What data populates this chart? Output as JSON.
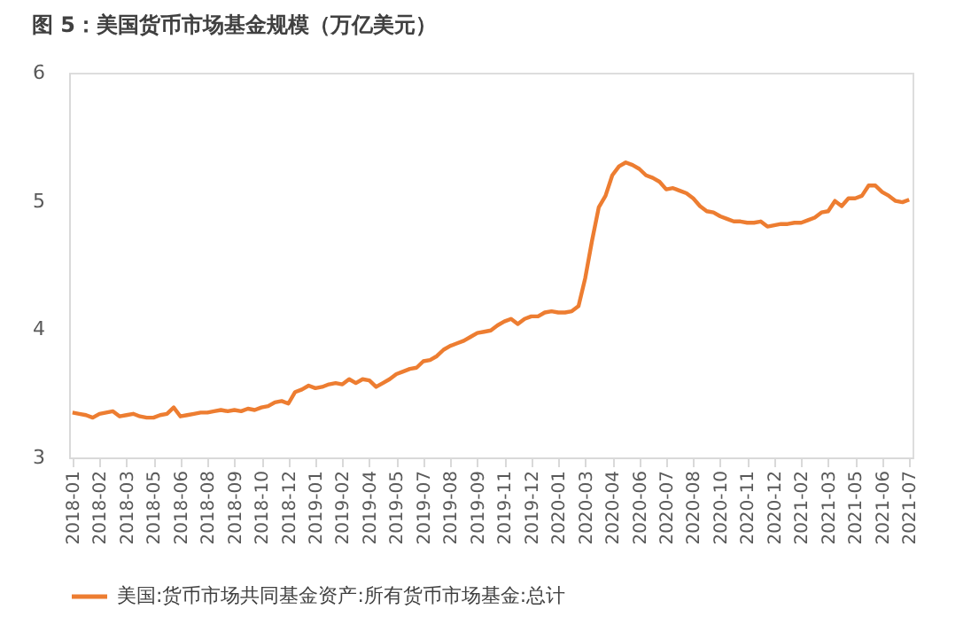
{
  "chart_data": {
    "type": "line",
    "title": "图 5：美国货币市场基金规模（万亿美元）",
    "categories": [
      "2018-01",
      null,
      null,
      null,
      "2018-02",
      null,
      null,
      null,
      "2018-03",
      null,
      null,
      null,
      "2018-05",
      null,
      null,
      null,
      "2018-06",
      null,
      null,
      null,
      "2018-08",
      null,
      null,
      null,
      "2018-09",
      null,
      null,
      null,
      "2018-10",
      null,
      null,
      null,
      "2018-12",
      null,
      null,
      null,
      "2019-01",
      null,
      null,
      null,
      "2019-02",
      null,
      null,
      null,
      "2019-04",
      null,
      null,
      null,
      "2019-05",
      null,
      null,
      null,
      "2019-07",
      null,
      null,
      null,
      "2019-08",
      null,
      null,
      null,
      "2019-09",
      null,
      null,
      null,
      "2019-11",
      null,
      null,
      null,
      "2019-12",
      null,
      null,
      null,
      "2020-01",
      null,
      null,
      null,
      "2020-03",
      null,
      null,
      null,
      "2020-04",
      null,
      null,
      null,
      "2020-06",
      null,
      null,
      null,
      "2020-07",
      null,
      null,
      null,
      "2020-08",
      null,
      null,
      null,
      "2020-10",
      null,
      null,
      null,
      "2020-11",
      null,
      null,
      null,
      "2020-12",
      null,
      null,
      null,
      "2021-02",
      null,
      null,
      null,
      "2021-03",
      null,
      null,
      null,
      "2021-05",
      null,
      null,
      null,
      "2021-06",
      null,
      null,
      null,
      "2021-07"
    ],
    "series": [
      {
        "name": "美国:货币市场共同基金资产:所有货币市场基金:总计",
        "color": "#ed7d31",
        "values": [
          3.35,
          3.34,
          3.33,
          3.31,
          3.34,
          3.35,
          3.36,
          3.32,
          3.33,
          3.34,
          3.32,
          3.31,
          3.31,
          3.33,
          3.34,
          3.39,
          3.32,
          3.33,
          3.34,
          3.35,
          3.35,
          3.36,
          3.37,
          3.36,
          3.37,
          3.36,
          3.38,
          3.37,
          3.39,
          3.4,
          3.43,
          3.44,
          3.42,
          3.51,
          3.53,
          3.56,
          3.54,
          3.55,
          3.57,
          3.58,
          3.57,
          3.61,
          3.58,
          3.61,
          3.6,
          3.55,
          3.58,
          3.61,
          3.65,
          3.67,
          3.69,
          3.7,
          3.75,
          3.76,
          3.79,
          3.84,
          3.87,
          3.89,
          3.91,
          3.94,
          3.97,
          3.98,
          3.99,
          4.03,
          4.06,
          4.08,
          4.04,
          4.08,
          4.1,
          4.1,
          4.13,
          4.14,
          4.13,
          4.13,
          4.14,
          4.18,
          4.4,
          4.69,
          4.95,
          5.04,
          5.2,
          5.27,
          5.3,
          5.28,
          5.25,
          5.2,
          5.18,
          5.15,
          5.09,
          5.1,
          5.08,
          5.06,
          5.02,
          4.96,
          4.92,
          4.91,
          4.88,
          4.86,
          4.84,
          4.84,
          4.83,
          4.83,
          4.84,
          4.8,
          4.81,
          4.82,
          4.82,
          4.83,
          4.83,
          4.85,
          4.87,
          4.91,
          4.92,
          5.0,
          4.96,
          5.02,
          5.02,
          5.04,
          5.12,
          5.12,
          5.07,
          5.04,
          5.0,
          4.99,
          5.01
        ]
      }
    ],
    "ylim": [
      3,
      6
    ],
    "yticks": [
      3,
      4,
      5,
      6
    ],
    "grid": false,
    "legend": "bottom",
    "marker": "none",
    "line_style": "solid"
  }
}
